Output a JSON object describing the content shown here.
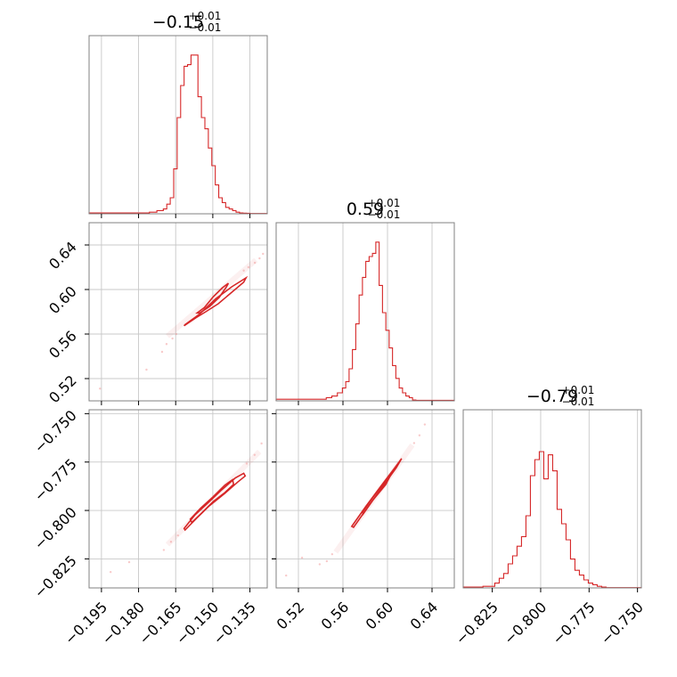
{
  "colors": {
    "series": "#d62728",
    "frame": "#808080",
    "grid": "#c8c8c8"
  },
  "chart_data": {
    "type": "corner",
    "grid": true,
    "parameters": [
      {
        "title": {
          "median": "−0.15",
          "upper": "+0.01",
          "lower": "−0.01"
        },
        "range": [
          -0.2,
          -0.128
        ],
        "ticks": [
          -0.195,
          -0.18,
          -0.165,
          -0.15,
          -0.135
        ],
        "tick_labels": [
          "−0.195",
          "−0.180",
          "−0.165",
          "−0.150",
          "−0.135"
        ],
        "median": -0.15,
        "sigma": 0.006
      },
      {
        "title": {
          "median": "0.59",
          "upper": "+0.01",
          "lower": "−0.01"
        },
        "range": [
          0.5,
          0.66
        ],
        "ticks": [
          0.52,
          0.56,
          0.6,
          0.64
        ],
        "tick_labels": [
          "0.52",
          "0.56",
          "0.60",
          "0.64"
        ],
        "median": 0.595,
        "sigma": 0.01
      },
      {
        "title": {
          "median": "−0.79",
          "upper": "+0.01",
          "lower": "−0.01"
        },
        "range": [
          -0.84,
          -0.748
        ],
        "ticks": [
          -0.825,
          -0.8,
          -0.775,
          -0.75
        ],
        "tick_labels": [
          "−0.825",
          "−0.800",
          "−0.775",
          "−0.750"
        ],
        "median": -0.79,
        "sigma": 0.007
      }
    ],
    "histograms": [
      {
        "parameter": 0,
        "bin_edges": [
          -0.2,
          -0.1756,
          -0.1726,
          -0.17,
          -0.1686,
          -0.1672,
          -0.1658,
          -0.1644,
          -0.163,
          -0.1616,
          -0.1602,
          -0.1588,
          -0.1574,
          -0.156,
          -0.1546,
          -0.1532,
          -0.1518,
          -0.1504,
          -0.149,
          -0.1476,
          -0.1462,
          -0.1448,
          -0.1434,
          -0.142,
          -0.1406,
          -0.1392,
          -0.1378,
          -0.1364,
          -0.135,
          -0.128
        ],
        "counts": [
          0.005,
          0.01,
          0.02,
          0.03,
          0.06,
          0.1,
          0.28,
          0.6,
          0.8,
          0.92,
          0.93,
          0.99,
          0.99,
          0.73,
          0.6,
          0.53,
          0.41,
          0.3,
          0.18,
          0.1,
          0.07,
          0.04,
          0.03,
          0.02,
          0.01,
          0.005,
          0.004,
          0.003,
          0.002
        ]
      },
      {
        "parameter": 1,
        "bin_edges": [
          0.5,
          0.545,
          0.55,
          0.555,
          0.5595,
          0.5625,
          0.5655,
          0.5685,
          0.5715,
          0.5745,
          0.5775,
          0.5805,
          0.5835,
          0.5865,
          0.5895,
          0.5925,
          0.5955,
          0.5985,
          0.6015,
          0.6045,
          0.6075,
          0.6105,
          0.6135,
          0.6165,
          0.6195,
          0.6225,
          0.6255,
          0.66
        ],
        "counts": [
          0.01,
          0.02,
          0.03,
          0.05,
          0.08,
          0.12,
          0.2,
          0.32,
          0.48,
          0.66,
          0.77,
          0.87,
          0.9,
          0.92,
          0.99,
          0.72,
          0.55,
          0.44,
          0.33,
          0.22,
          0.14,
          0.08,
          0.05,
          0.03,
          0.02,
          0.005,
          0.003
        ]
      },
      {
        "parameter": 2,
        "bin_edges": [
          -0.84,
          -0.8298,
          -0.8237,
          -0.8214,
          -0.8191,
          -0.8168,
          -0.8145,
          -0.8122,
          -0.8099,
          -0.8076,
          -0.8053,
          -0.803,
          -0.8007,
          -0.7984,
          -0.7961,
          -0.7938,
          -0.7915,
          -0.7892,
          -0.7869,
          -0.7846,
          -0.7823,
          -0.78,
          -0.7777,
          -0.7754,
          -0.7731,
          -0.7708,
          -0.7685,
          -0.7662,
          -0.748
        ],
        "counts": [
          0.005,
          0.01,
          0.03,
          0.06,
          0.09,
          0.15,
          0.2,
          0.26,
          0.32,
          0.45,
          0.7,
          0.8,
          0.85,
          0.68,
          0.83,
          0.73,
          0.49,
          0.4,
          0.3,
          0.18,
          0.11,
          0.08,
          0.05,
          0.03,
          0.02,
          0.01,
          0.005,
          0.002
        ]
      }
    ],
    "pairs": [
      {
        "x": 0,
        "y": 1,
        "contours": [
          {
            "level": "1-sigma",
            "points": [
              [
                -0.1563,
                0.579
              ],
              [
                -0.1534,
                0.5838
              ],
              [
                -0.1499,
                0.5933
              ],
              [
                -0.1462,
                0.6014
              ],
              [
                -0.1437,
                0.6056
              ],
              [
                -0.1445,
                0.6023
              ],
              [
                -0.1474,
                0.5929
              ],
              [
                -0.1513,
                0.5847
              ],
              [
                -0.1553,
                0.5789
              ]
            ]
          },
          {
            "level": "2-sigma",
            "points": [
              [
                -0.1612,
                0.5685
              ],
              [
                -0.1553,
                0.578
              ],
              [
                -0.1488,
                0.5917
              ],
              [
                -0.1423,
                0.6025
              ],
              [
                -0.1366,
                0.6104
              ],
              [
                -0.1375,
                0.6066
              ],
              [
                -0.1425,
                0.5972
              ],
              [
                -0.1478,
                0.5872
              ],
              [
                -0.1525,
                0.5805
              ],
              [
                -0.1568,
                0.5746
              ],
              [
                -0.1616,
                0.5674
              ]
            ]
          }
        ],
        "ridge": [
          [
            -0.1683,
            0.5581
          ],
          [
            -0.1326,
            0.6265
          ]
        ],
        "samples": [
          [
            -0.1956,
            0.511
          ],
          [
            -0.1768,
            0.528
          ],
          [
            -0.1705,
            0.544
          ],
          [
            -0.1687,
            0.551
          ],
          [
            -0.1663,
            0.556
          ],
          [
            -0.1648,
            0.56
          ],
          [
            -0.1375,
            0.617
          ],
          [
            -0.1356,
            0.62
          ],
          [
            -0.133,
            0.624
          ],
          [
            -0.1311,
            0.628
          ],
          [
            -0.1297,
            0.632
          ]
        ]
      },
      {
        "x": 0,
        "y": 2,
        "contours": [
          {
            "level": "1-sigma",
            "points": [
              [
                -0.1591,
                -0.8045
              ],
              [
                -0.1549,
                -0.7988
              ],
              [
                -0.15,
                -0.7931
              ],
              [
                -0.1451,
                -0.7869
              ],
              [
                -0.142,
                -0.7841
              ],
              [
                -0.1416,
                -0.7865
              ],
              [
                -0.1451,
                -0.7907
              ],
              [
                -0.1499,
                -0.7955
              ],
              [
                -0.1544,
                -0.8012
              ],
              [
                -0.1585,
                -0.8062
              ]
            ]
          },
          {
            "level": "2-sigma",
            "points": [
              [
                -0.1616,
                -0.8093
              ],
              [
                -0.1572,
                -0.8023
              ],
              [
                -0.1518,
                -0.7959
              ],
              [
                -0.1468,
                -0.7898
              ],
              [
                -0.1409,
                -0.7832
              ],
              [
                -0.1375,
                -0.7808
              ],
              [
                -0.1369,
                -0.7822
              ],
              [
                -0.14,
                -0.7854
              ],
              [
                -0.1451,
                -0.7911
              ],
              [
                -0.1514,
                -0.7976
              ],
              [
                -0.1566,
                -0.8041
              ],
              [
                -0.1612,
                -0.8101
              ]
            ]
          }
        ],
        "ridge": [
          [
            -0.1683,
            -0.8176
          ],
          [
            -0.1312,
            -0.7696
          ]
        ],
        "samples": [
          [
            -0.1913,
            -0.8318
          ],
          [
            -0.1838,
            -0.8267
          ],
          [
            -0.1698,
            -0.8204
          ],
          [
            -0.1669,
            -0.8162
          ],
          [
            -0.1641,
            -0.8129
          ],
          [
            -0.1363,
            -0.7758
          ],
          [
            -0.1331,
            -0.7713
          ],
          [
            -0.1303,
            -0.7654
          ]
        ]
      },
      {
        "x": 1,
        "y": 2,
        "contours": [
          {
            "level": "1-sigma",
            "points": [
              [
                0.5775,
                -0.8009
              ],
              [
                0.5871,
                -0.7931
              ],
              [
                0.5983,
                -0.7848
              ],
              [
                0.6047,
                -0.7796
              ],
              [
                0.5983,
                -0.7867
              ],
              [
                0.5871,
                -0.7945
              ],
              [
                0.5781,
                -0.8019
              ]
            ]
          },
          {
            "level": "2-sigma",
            "points": [
              [
                0.5679,
                -0.8082
              ],
              [
                0.5807,
                -0.7978
              ],
              [
                0.5935,
                -0.7879
              ],
              [
                0.6063,
                -0.7782
              ],
              [
                0.6127,
                -0.7732
              ],
              [
                0.6079,
                -0.7779
              ],
              [
                0.5951,
                -0.7881
              ],
              [
                0.5823,
                -0.7983
              ],
              [
                0.5695,
                -0.8087
              ]
            ]
          }
        ],
        "ridge": [
          [
            0.5535,
            -0.8215
          ],
          [
            0.6223,
            -0.7662
          ]
        ],
        "samples": [
          [
            0.509,
            -0.8336
          ],
          [
            0.5233,
            -0.8244
          ],
          [
            0.5391,
            -0.8278
          ],
          [
            0.5455,
            -0.8262
          ],
          [
            0.5503,
            -0.8226
          ],
          [
            0.6239,
            -0.7652
          ],
          [
            0.6287,
            -0.7612
          ],
          [
            0.6335,
            -0.7556
          ]
        ]
      }
    ]
  }
}
